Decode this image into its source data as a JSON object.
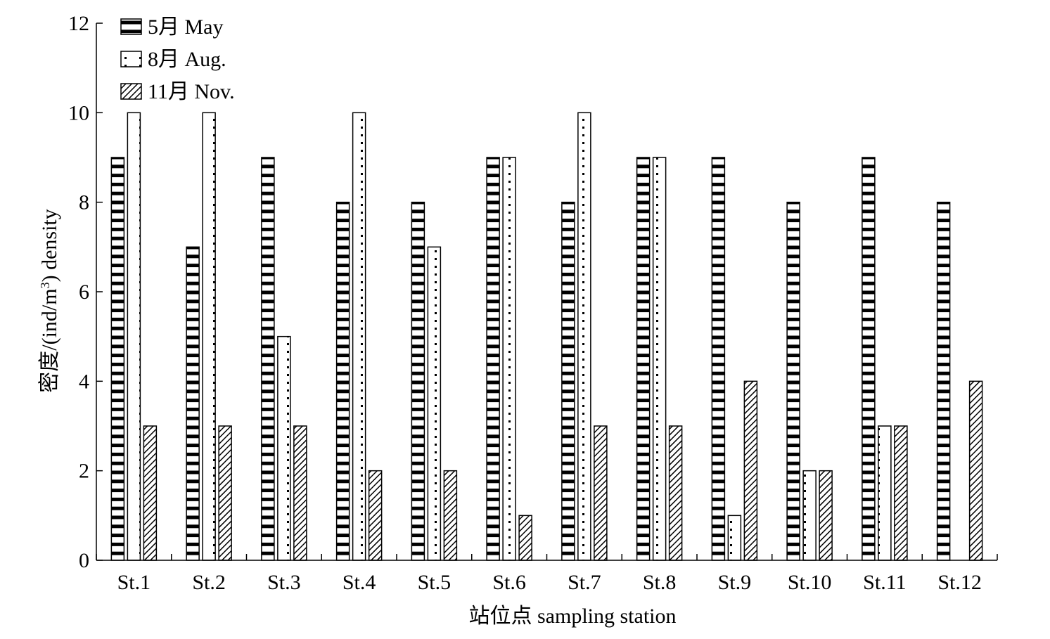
{
  "chart_data": {
    "type": "bar",
    "title": "",
    "xlabel": "站位点 sampling station",
    "ylabel_main": "密度/(ind/m",
    "ylabel_sup": "3",
    "ylabel_tail": ") density",
    "ylim": [
      0,
      12
    ],
    "yticks": [
      0,
      2,
      4,
      6,
      8,
      10,
      12
    ],
    "grid": false,
    "legend_position": "top-left",
    "categories": [
      "St.1",
      "St.2",
      "St.3",
      "St.4",
      "St.5",
      "St.6",
      "St.7",
      "St.8",
      "St.9",
      "St.10",
      "St.11",
      "St.12"
    ],
    "series": [
      {
        "name": "5月 May",
        "pattern": "horizontal-lines",
        "values": [
          9,
          7,
          9,
          8,
          8,
          9,
          8,
          9,
          9,
          8,
          9,
          8
        ]
      },
      {
        "name": "8月 Aug.",
        "pattern": "dots",
        "values": [
          10,
          10,
          5,
          10,
          7,
          9,
          10,
          9,
          1,
          2,
          3,
          0
        ]
      },
      {
        "name": "11月 Nov.",
        "pattern": "diagonal-lines",
        "values": [
          3,
          3,
          3,
          2,
          2,
          1,
          3,
          3,
          4,
          2,
          3,
          4
        ]
      }
    ],
    "colors": {
      "ink": "#000000",
      "fill": "#ffffff"
    }
  }
}
